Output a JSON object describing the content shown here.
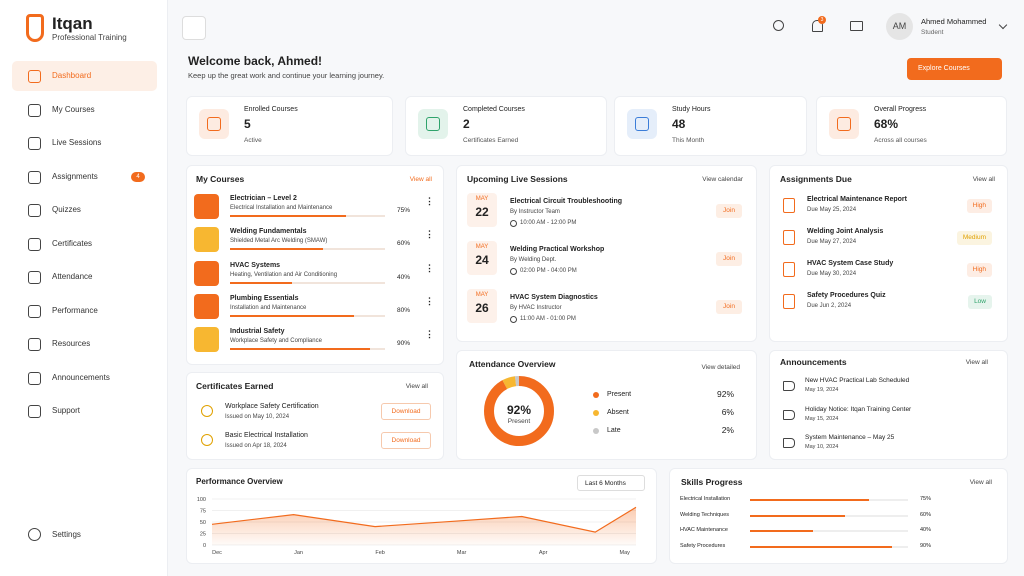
{
  "brand": {
    "name": "Itqan",
    "tagline": "Professional Training"
  },
  "nav": [
    "Dashboard",
    "My Courses",
    "Live Sessions",
    "Assignments",
    "Quizzes",
    "Certificates",
    "Attendance",
    "Performance",
    "Resources",
    "Announcements",
    "Support"
  ],
  "nav_badge": "4",
  "settings": "Settings",
  "user": {
    "initials": "AM",
    "name": "Ahmed Mohammed",
    "role": "Student"
  },
  "notification_count": "3",
  "welcome": {
    "title": "Welcome back, Ahmed!",
    "subtitle": "Keep up the great work and continue your learning journey.",
    "button": "Explore Courses"
  },
  "stats": [
    {
      "label": "Enrolled Courses",
      "value": "5",
      "note": "Active",
      "color": "#f26b1d"
    },
    {
      "label": "Completed Courses",
      "value": "2",
      "note": "Certificates Earned",
      "color": "#2fa36b"
    },
    {
      "label": "Study Hours",
      "value": "48",
      "note": "This Month",
      "color": "#3b7dd8"
    },
    {
      "label": "Overall Progress",
      "value": "68%",
      "note": "Across all courses",
      "color": "#f26b1d"
    }
  ],
  "my_courses": {
    "title": "My Courses",
    "link": "View all",
    "items": [
      {
        "name": "Electrician – Level 2",
        "desc": "Electrical Installation and Maintenance",
        "progress": 75,
        "progress_label": "75%",
        "color": "#f26b1d"
      },
      {
        "name": "Welding Fundamentals",
        "desc": "Shielded Metal Arc Welding (SMAW)",
        "progress": 60,
        "progress_label": "60%",
        "color": "#f7b731"
      },
      {
        "name": "HVAC Systems",
        "desc": "Heating, Ventilation and Air Conditioning",
        "progress": 40,
        "progress_label": "40%",
        "color": "#f26b1d"
      },
      {
        "name": "Plumbing Essentials",
        "desc": "Installation and Maintenance",
        "progress": 80,
        "progress_label": "80%",
        "color": "#f26b1d"
      },
      {
        "name": "Industrial Safety",
        "desc": "Workplace Safety and Compliance",
        "progress": 90,
        "progress_label": "90%",
        "color": "#f7b731"
      }
    ]
  },
  "sessions": {
    "title": "Upcoming Live Sessions",
    "link": "View calendar",
    "items": [
      {
        "month": "MAY",
        "day": "22",
        "name": "Electrical Circuit Troubleshooting",
        "by": "By Instructor Team",
        "time": "10:00 AM - 12:00 PM",
        "action": "Join"
      },
      {
        "month": "MAY",
        "day": "24",
        "name": "Welding Practical Workshop",
        "by": "By Welding Dept.",
        "time": "02:00 PM - 04:00 PM",
        "action": "Join"
      },
      {
        "month": "MAY",
        "day": "26",
        "name": "HVAC System Diagnostics",
        "by": "By HVAC Instructor",
        "time": "11:00 AM - 01:00 PM",
        "action": "Join"
      }
    ]
  },
  "assignments": {
    "title": "Assignments Due",
    "link": "View all",
    "items": [
      {
        "name": "Electrical Maintenance Report",
        "due": "Due May 25, 2024",
        "priority": "High",
        "color": "#f26b1d"
      },
      {
        "name": "Welding Joint Analysis",
        "due": "Due May 27, 2024",
        "priority": "Medium",
        "color": "#e0a100"
      },
      {
        "name": "HVAC System Case Study",
        "due": "Due May 30, 2024",
        "priority": "High",
        "color": "#f26b1d"
      },
      {
        "name": "Safety Procedures Quiz",
        "due": "Due Jun 2, 2024",
        "priority": "Low",
        "color": "#2fa36b"
      }
    ]
  },
  "certificates": {
    "title": "Certificates Earned",
    "link": "View all",
    "items": [
      {
        "name": "Workplace Safety Certification",
        "issued": "Issued on May 10, 2024",
        "action": "Download"
      },
      {
        "name": "Basic Electrical Installation",
        "issued": "Issued on Apr 18, 2024",
        "action": "Download"
      }
    ]
  },
  "attendance": {
    "title": "Attendance Overview",
    "link": "View detailed",
    "center_value": "92%",
    "center_label": "Present",
    "items": [
      {
        "name": "Present",
        "value": 92,
        "value_label": "92%",
        "color": "#f26b1d"
      },
      {
        "name": "Absent",
        "value": 6,
        "value_label": "6%",
        "color": "#f7b731"
      },
      {
        "name": "Late",
        "value": 2,
        "value_label": "2%",
        "color": "#c8c8c8"
      }
    ]
  },
  "announcements": {
    "title": "Announcements",
    "link": "View all",
    "items": [
      {
        "title": "New HVAC Practical Lab Scheduled",
        "date": "May 19, 2024"
      },
      {
        "title": "Holiday Notice: Itqan Training Center",
        "date": "May 15, 2024"
      },
      {
        "title": "System Maintenance – May 25",
        "date": "May 10, 2024"
      }
    ]
  },
  "performance": {
    "title": "Performance Overview",
    "filter": "Last 6 Months",
    "chart_data": {
      "type": "line",
      "x": [
        0,
        1,
        2,
        3,
        3.8,
        4.7,
        5.2
      ],
      "values": [
        45,
        66,
        40,
        52,
        62,
        28,
        82
      ],
      "color": "#f26b1d",
      "xlim": [
        0,
        5.2
      ],
      "xticks": [
        {
          "value": 0,
          "label": "Dec"
        },
        {
          "value": 1,
          "label": "Jan"
        },
        {
          "value": 2,
          "label": "Feb"
        },
        {
          "value": 3,
          "label": "Mar"
        },
        {
          "value": 4,
          "label": "Apr"
        },
        {
          "value": 5,
          "label": "May"
        }
      ],
      "ylim": [
        0,
        100
      ],
      "yticks": [
        0,
        25,
        50,
        75,
        100
      ]
    }
  },
  "skills": {
    "title": "Skills Progress",
    "link": "View all",
    "items": [
      {
        "name": "Electrical Installation",
        "value": 75,
        "value_label": "75%"
      },
      {
        "name": "Welding Techniques",
        "value": 60,
        "value_label": "60%"
      },
      {
        "name": "HVAC Maintenance",
        "value": 40,
        "value_label": "40%"
      },
      {
        "name": "Safety Procedures",
        "value": 90,
        "value_label": "90%"
      }
    ]
  }
}
